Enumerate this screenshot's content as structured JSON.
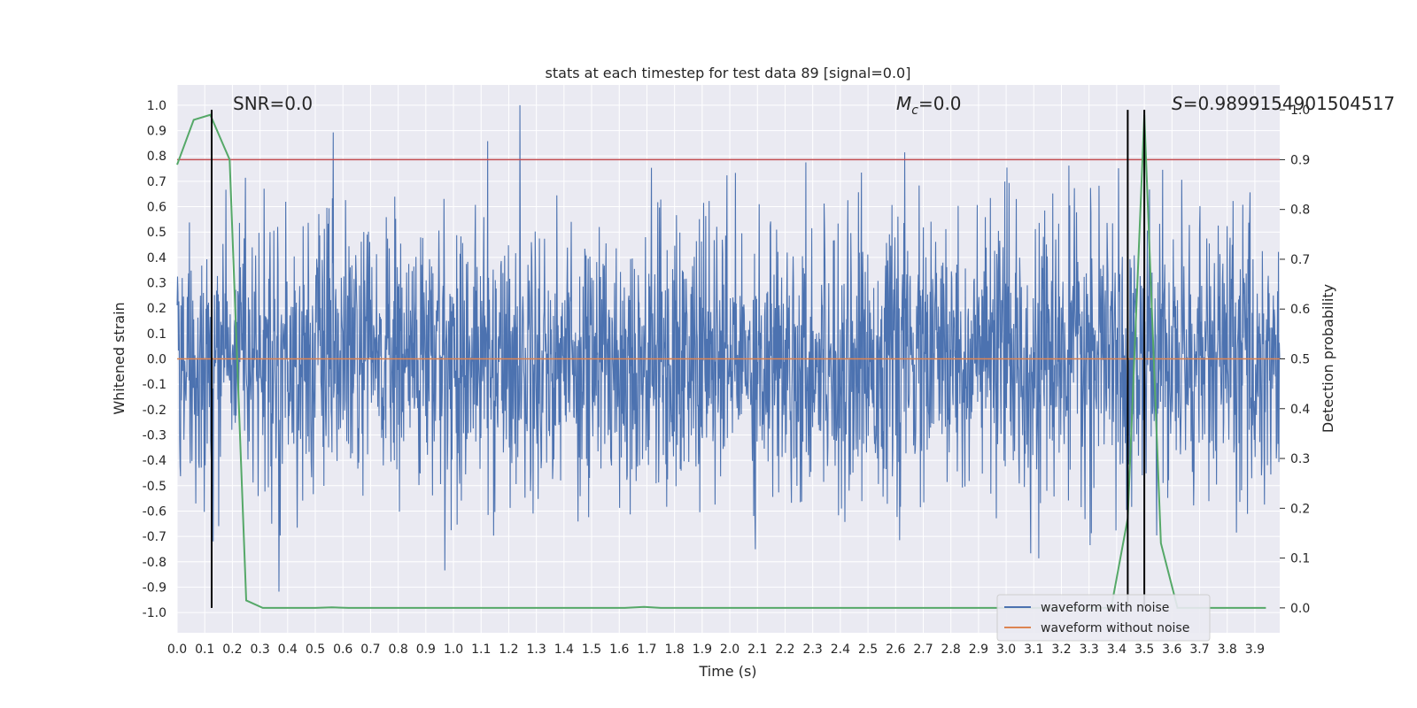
{
  "chart_data": {
    "type": "line",
    "title": "stats at each timestep for test data 89 [signal=0.0]",
    "xlabel": "Time (s)",
    "ylabel": "Whitened strain",
    "ylabel_right": "Detection probability",
    "xlim": [
      0.0,
      3.99
    ],
    "ylim": [
      -1.08,
      1.08
    ],
    "ylim_right": [
      -0.05,
      1.05
    ],
    "x_ticks": [
      "0.0",
      "0.1",
      "0.2",
      "0.3",
      "0.4",
      "0.5",
      "0.6",
      "0.7",
      "0.8",
      "0.9",
      "1.0",
      "1.1",
      "1.2",
      "1.3",
      "1.4",
      "1.5",
      "1.6",
      "1.7",
      "1.8",
      "1.9",
      "2.0",
      "2.1",
      "2.2",
      "2.3",
      "2.4",
      "2.5",
      "2.6",
      "2.7",
      "2.8",
      "2.9",
      "3.0",
      "3.1",
      "3.2",
      "3.3",
      "3.4",
      "3.5",
      "3.6",
      "3.7",
      "3.8",
      "3.9"
    ],
    "y_ticks": [
      "-1.0",
      "-0.9",
      "-0.8",
      "-0.7",
      "-0.6",
      "-0.5",
      "-0.4",
      "-0.3",
      "-0.2",
      "-0.1",
      "0.0",
      "0.1",
      "0.2",
      "0.3",
      "0.4",
      "0.5",
      "0.6",
      "0.7",
      "0.8",
      "0.9",
      "1.0"
    ],
    "y_ticks_right": [
      "0.0",
      "0.1",
      "0.2",
      "0.3",
      "0.4",
      "0.5",
      "0.6",
      "0.7",
      "0.8",
      "0.9",
      "1.0"
    ],
    "annotations": {
      "snr": "SNR=0.0",
      "mc_symbol": "M",
      "mc_sub": "c",
      "mc_value": "=0.0",
      "s_symbol": "S",
      "s_value": "=0.9899154901504517"
    },
    "threshold_right": 0.9,
    "vertical_lines_x": [
      0.125,
      3.44,
      3.5
    ],
    "legend": [
      {
        "label": "waveform with noise",
        "color": "#4c72b0"
      },
      {
        "label": "waveform without noise",
        "color": "#dd8452"
      }
    ],
    "series": [
      {
        "name": "waveform with noise",
        "color": "#4c72b0",
        "kind": "noise",
        "x_range": [
          0.0,
          3.99
        ],
        "amplitude_range": [
          -0.97,
          1.0
        ]
      },
      {
        "name": "waveform without noise",
        "color": "#dd8452",
        "kind": "line",
        "x": [
          0.0,
          3.99
        ],
        "y": [
          0.0,
          0.0
        ]
      },
      {
        "name": "detection probability",
        "color": "#55a868",
        "axis": "right",
        "x": [
          0.0,
          0.06,
          0.12,
          0.19,
          0.25,
          0.31,
          0.38,
          0.44,
          0.5,
          0.56,
          0.62,
          0.69,
          0.75,
          0.81,
          0.88,
          0.94,
          1.0,
          1.06,
          1.12,
          1.19,
          1.25,
          1.31,
          1.38,
          1.44,
          1.5,
          1.56,
          1.62,
          1.69,
          1.75,
          1.81,
          1.88,
          1.94,
          2.0,
          2.06,
          2.12,
          2.19,
          2.25,
          2.31,
          2.38,
          2.44,
          2.5,
          2.56,
          2.62,
          2.69,
          2.75,
          2.81,
          2.88,
          2.94,
          3.0,
          3.06,
          3.12,
          3.19,
          3.25,
          3.31,
          3.38,
          3.44,
          3.5,
          3.56,
          3.62,
          3.69,
          3.75,
          3.81,
          3.88,
          3.94
        ],
        "y": [
          0.89,
          0.98,
          0.99,
          0.9,
          0.015,
          0.0,
          0.0,
          0.0,
          0.0,
          0.001,
          0.0,
          0.0,
          0.0,
          0.0,
          0.0,
          0.0,
          0.0,
          0.0,
          0.0,
          0.0,
          0.0,
          0.0,
          0.0,
          0.0,
          0.0,
          0.0,
          0.0,
          0.002,
          0.0,
          0.0,
          0.0,
          0.0,
          0.0,
          0.0,
          0.0,
          0.0,
          0.0,
          0.0,
          0.0,
          0.0,
          0.0,
          0.0,
          0.0,
          0.0,
          0.0,
          0.0,
          0.0,
          0.0,
          0.0,
          0.0,
          0.0,
          0.0,
          0.0,
          0.0,
          0.0,
          0.18,
          0.99,
          0.13,
          0.0,
          0.0,
          0.0,
          0.0,
          0.0,
          0.0
        ]
      }
    ]
  }
}
